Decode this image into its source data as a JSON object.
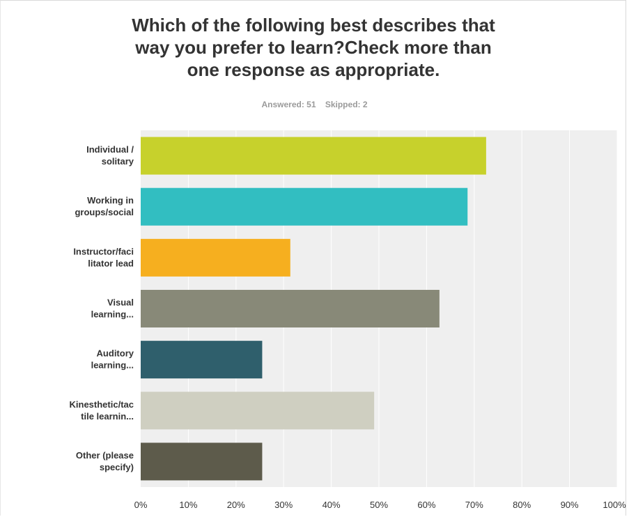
{
  "title_lines": [
    "Which of the following best describes that",
    "way you prefer to learn?Check more than",
    "one response as appropriate."
  ],
  "answered": "Answered: 51",
  "skipped": "Skipped: 2",
  "chart_data": {
    "type": "bar",
    "orientation": "horizontal",
    "title": "Which of the following best describes that way you prefer to learn?Check more than one response as appropriate.",
    "categories": [
      [
        "Individual /",
        "solitary"
      ],
      [
        "Working in",
        "groups/social"
      ],
      [
        "Instructor/faci",
        "litator lead"
      ],
      [
        "Visual",
        "learning..."
      ],
      [
        "Auditory",
        "learning..."
      ],
      [
        "Kinesthetic/tac",
        "tile learnin..."
      ],
      [
        "Other (please",
        "specify)"
      ]
    ],
    "values": [
      72.5,
      68.6,
      31.4,
      62.7,
      25.5,
      49.0,
      25.5
    ],
    "colors": [
      "#c7d12c",
      "#32bec1",
      "#f6af1f",
      "#888978",
      "#2f5f6c",
      "#cfcfc1",
      "#5d5b4b"
    ],
    "xlim": [
      0,
      100
    ],
    "xticks": [
      "0%",
      "10%",
      "20%",
      "30%",
      "40%",
      "50%",
      "60%",
      "70%",
      "80%",
      "90%",
      "100%"
    ],
    "grid": true,
    "plot_background": "#efefef",
    "gridline_color": "#ffffff"
  }
}
